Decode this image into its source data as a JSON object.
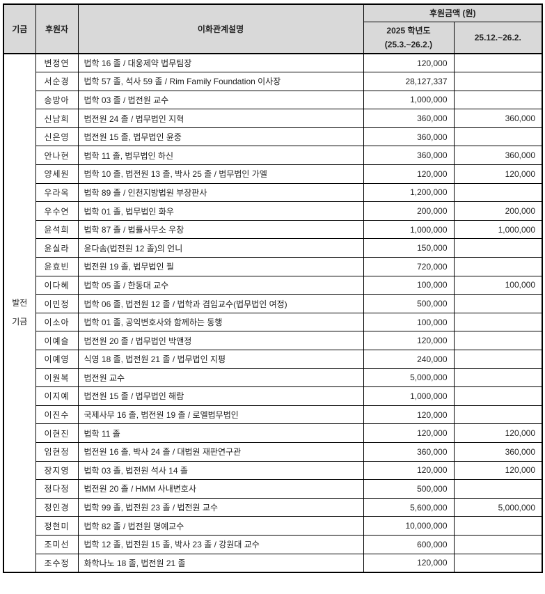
{
  "table": {
    "colors": {
      "header_bg": "#d9d9d9",
      "border": "#000000",
      "text": "#1f1f1f",
      "row_bg": "#ffffff"
    },
    "headers": {
      "fund": "기금",
      "donor": "후원자",
      "relation": "이화관계설명",
      "amount_group": "후원금액 (원)",
      "amount_col1_line1": "2025 학년도",
      "amount_col1_line2": "(25.3.~26.2.)",
      "amount_col2": "25.12.~26.2."
    },
    "fund_label": {
      "line1": "발전",
      "line2": "기금"
    },
    "rows": [
      {
        "donor": "변정연",
        "relation": "법학 16 졸 / 대웅제약 법무팀장",
        "amount_2025": "120,000",
        "amount_recent": ""
      },
      {
        "donor": "서순경",
        "relation": "법학 57 졸, 석사 59 졸 / Rim Family Foundation 이사장",
        "amount_2025": "28,127,337",
        "amount_recent": ""
      },
      {
        "donor": "송방아",
        "relation": "법학 03 졸 / 법전원 교수",
        "amount_2025": "1,000,000",
        "amount_recent": ""
      },
      {
        "donor": "신남희",
        "relation": "법전원 24 졸 / 법무법인 지혁",
        "amount_2025": "360,000",
        "amount_recent": "360,000"
      },
      {
        "donor": "신은영",
        "relation": "법전원 15 졸, 법무법인 윤중",
        "amount_2025": "360,000",
        "amount_recent": ""
      },
      {
        "donor": "안나현",
        "relation": "법학 11 졸, 법무법인 하신",
        "amount_2025": "360,000",
        "amount_recent": "360,000"
      },
      {
        "donor": "양세원",
        "relation": "법학 10 졸, 법전원 13 졸, 박사 25 졸 / 법무법인 가엘",
        "amount_2025": "120,000",
        "amount_recent": "120,000"
      },
      {
        "donor": "우라옥",
        "relation": "법학 89 졸 / 인천지방법원 부장판사",
        "amount_2025": "1,200,000",
        "amount_recent": ""
      },
      {
        "donor": "우수연",
        "relation": "법학 01 졸, 법무법인 화우",
        "amount_2025": "200,000",
        "amount_recent": "200,000"
      },
      {
        "donor": "윤석희",
        "relation": "법학 87 졸 / 법률사무소 우창",
        "amount_2025": "1,000,000",
        "amount_recent": "1,000,000"
      },
      {
        "donor": "윤실라",
        "relation": "윤다솜(법전원 12 졸)의 언니",
        "amount_2025": "150,000",
        "amount_recent": ""
      },
      {
        "donor": "윤효빈",
        "relation": "법전원 19 졸, 법무법인 필",
        "amount_2025": "720,000",
        "amount_recent": ""
      },
      {
        "donor": "이다혜",
        "relation": "법학 05 졸 / 한동대 교수",
        "amount_2025": "100,000",
        "amount_recent": "100,000"
      },
      {
        "donor": "이민정",
        "relation": "법학 06 졸, 법전원 12 졸 / 법학과 겸임교수(법무법인 여정)",
        "amount_2025": "500,000",
        "amount_recent": ""
      },
      {
        "donor": "이소아",
        "relation": "법학 01 졸, 공익변호사와 함께하는 동행",
        "amount_2025": "100,000",
        "amount_recent": ""
      },
      {
        "donor": "이예슬",
        "relation": "법전원 20 졸 / 법무법인 박앤정",
        "amount_2025": "120,000",
        "amount_recent": ""
      },
      {
        "donor": "이예영",
        "relation": "식영 18 졸, 법전원 21 졸 / 법무법인 지평",
        "amount_2025": "240,000",
        "amount_recent": ""
      },
      {
        "donor": "이원복",
        "relation": "법전원 교수",
        "amount_2025": "5,000,000",
        "amount_recent": ""
      },
      {
        "donor": "이지예",
        "relation": "법전원 15 졸 / 법무법인 해람",
        "amount_2025": "1,000,000",
        "amount_recent": ""
      },
      {
        "donor": "이진수",
        "relation": "국제사무 16 졸, 법전원 19 졸 / 로엘법무법인",
        "amount_2025": "120,000",
        "amount_recent": ""
      },
      {
        "donor": "이현진",
        "relation": "법학 11 졸",
        "amount_2025": "120,000",
        "amount_recent": "120,000"
      },
      {
        "donor": "임현정",
        "relation": "법전원 16 졸, 박사 24 졸 / 대법원 재판연구관",
        "amount_2025": "360,000",
        "amount_recent": "360,000"
      },
      {
        "donor": "장지영",
        "relation": "법학 03 졸, 법전원 석사 14 졸",
        "amount_2025": "120,000",
        "amount_recent": "120,000"
      },
      {
        "donor": "정다정",
        "relation": "법전원 20 졸 / HMM 사내변호사",
        "amount_2025": "500,000",
        "amount_recent": ""
      },
      {
        "donor": "정인경",
        "relation": "법학 99 졸, 법전원 23 졸 / 법전원 교수",
        "amount_2025": "5,600,000",
        "amount_recent": "5,000,000"
      },
      {
        "donor": "정현미",
        "relation": "법학 82 졸 / 법전원 명예교수",
        "amount_2025": "10,000,000",
        "amount_recent": ""
      },
      {
        "donor": "조미선",
        "relation": "법학 12 졸, 법전원 15 졸, 박사 23 졸 / 강원대 교수",
        "amount_2025": "600,000",
        "amount_recent": ""
      },
      {
        "donor": "조수정",
        "relation": "화학나노 18 졸, 법전원 21 졸",
        "amount_2025": "120,000",
        "amount_recent": ""
      }
    ]
  }
}
